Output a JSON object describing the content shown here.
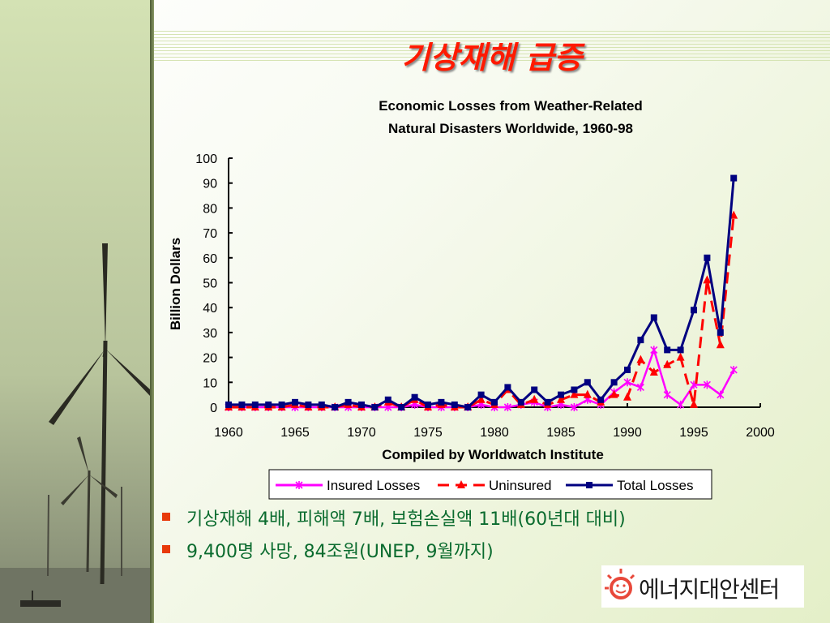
{
  "slide": {
    "title": "기상재해 급증",
    "bullets": [
      "기상재해 4배, 피해액 7배, 보험손실액 11배(60년대 대비)",
      "9,400명 사망, 84조원(UNEP, 9월까지)"
    ],
    "logo_text": "에너지대안센터"
  },
  "colors": {
    "insured": "#ff00ff",
    "uninsured": "#ff0000",
    "total": "#000080",
    "title": "#ff1a00",
    "bullets": "#0a6b2e"
  },
  "chart_data": {
    "type": "line",
    "title_line1": "Economic Losses from Weather-Related",
    "title_line2": "Natural Disasters Worldwide, 1960-98",
    "xlabel": "Compiled by Worldwatch Institute",
    "ylabel": "Billion Dollars",
    "xlim": [
      1960,
      2000
    ],
    "ylim": [
      0,
      100
    ],
    "xticks": [
      1960,
      1965,
      1970,
      1975,
      1980,
      1985,
      1990,
      1995,
      2000
    ],
    "yticks": [
      0,
      10,
      20,
      30,
      40,
      50,
      60,
      70,
      80,
      90,
      100
    ],
    "x": [
      1960,
      1961,
      1962,
      1963,
      1964,
      1965,
      1966,
      1967,
      1968,
      1969,
      1970,
      1971,
      1972,
      1973,
      1974,
      1975,
      1976,
      1977,
      1978,
      1979,
      1980,
      1981,
      1982,
      1983,
      1984,
      1985,
      1986,
      1987,
      1988,
      1989,
      1990,
      1991,
      1992,
      1993,
      1994,
      1995,
      1996,
      1997,
      1998
    ],
    "series": [
      {
        "name": "Insured Losses",
        "marker": "x",
        "dash": false,
        "values": [
          0,
          0,
          0,
          0,
          0,
          0,
          0,
          0,
          0,
          0,
          0,
          0,
          0,
          0,
          1,
          0,
          0,
          0,
          0,
          1,
          0,
          0,
          1,
          2,
          0,
          1,
          0,
          3,
          1,
          6,
          10,
          8,
          23,
          5,
          1,
          9,
          9,
          5,
          15
        ]
      },
      {
        "name": "Uninsured",
        "marker": "triangle",
        "dash": true,
        "values": [
          0,
          0,
          0,
          0,
          0,
          1,
          0,
          0,
          0,
          1,
          0,
          0,
          2,
          0,
          3,
          0,
          1,
          0,
          0,
          3,
          1,
          7,
          1,
          3,
          1,
          3,
          5,
          5,
          2,
          5,
          4,
          19,
          14,
          17,
          20,
          1,
          51,
          25,
          77
        ]
      },
      {
        "name": "Total Losses",
        "marker": "square",
        "dash": false,
        "values": [
          1,
          1,
          1,
          1,
          1,
          2,
          1,
          1,
          0,
          2,
          1,
          0,
          3,
          0,
          4,
          1,
          2,
          1,
          0,
          5,
          2,
          8,
          2,
          7,
          2,
          5,
          7,
          10,
          3,
          10,
          15,
          27,
          36,
          23,
          23,
          39,
          60,
          30,
          92
        ]
      }
    ]
  }
}
